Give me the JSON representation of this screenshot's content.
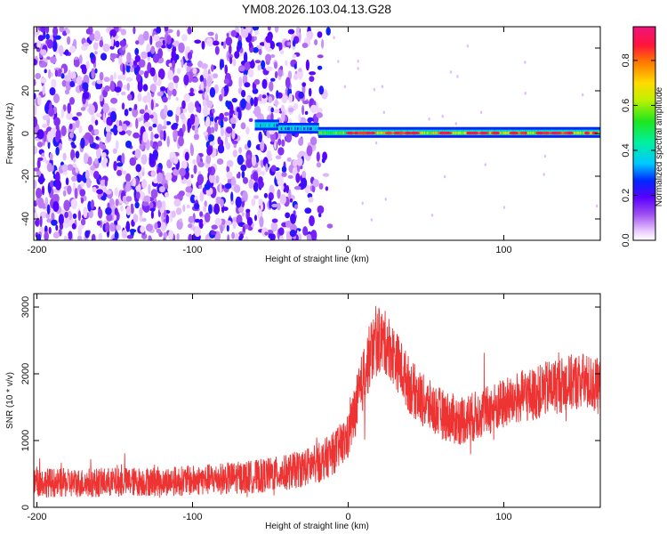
{
  "title": "YM08.2026.103.04.13.G28",
  "chart_data": [
    {
      "type": "heatmap",
      "name": "spectrogram",
      "xlabel": "Height of straight line (km)",
      "ylabel": "Frequency (Hz)",
      "xlim": [
        -202,
        162
      ],
      "ylim": [
        -50,
        50
      ],
      "xticks": [
        -200,
        -100,
        0,
        100
      ],
      "xtick_labels": [
        "-200",
        "-100",
        "0",
        "100"
      ],
      "yticks": [
        -40,
        -20,
        0,
        20,
        40
      ],
      "ytick_labels": [
        "-40",
        "-20",
        "0",
        "20",
        "40"
      ],
      "noise_region_km": [
        -202,
        -20
      ],
      "signal_band_hz": [
        -2,
        3
      ],
      "signal_start_km": -60,
      "colorbar": {
        "label": "Normalized spectral amplitude",
        "range": [
          0.0,
          0.95
        ],
        "ticks": [
          0.0,
          0.2,
          0.4,
          0.6,
          0.8
        ],
        "tick_labels": [
          "0.0",
          "0.2",
          "0.4",
          "0.6",
          "0.8"
        ]
      }
    },
    {
      "type": "line",
      "name": "snr",
      "xlabel": "Height of straight line (km)",
      "ylabel": "SNR (10 * v/v)",
      "xlim": [
        -202,
        162
      ],
      "ylim": [
        0,
        3200
      ],
      "xticks": [
        -200,
        -100,
        0,
        100
      ],
      "xtick_labels": [
        "-200",
        "-100",
        "0",
        "100"
      ],
      "yticks": [
        0,
        1000,
        2000,
        3000
      ],
      "ytick_labels": [
        "0",
        "1000",
        "2000",
        "3000"
      ],
      "color": "#ee3333",
      "series": [
        {
          "name": "SNR",
          "x": [
            -202,
            -180,
            -160,
            -140,
            -120,
            -100,
            -80,
            -60,
            -40,
            -20,
            -10,
            0,
            5,
            10,
            15,
            20,
            25,
            30,
            40,
            50,
            60,
            70,
            80,
            90,
            100,
            110,
            120,
            130,
            140,
            150,
            162
          ],
          "y": [
            380,
            360,
            370,
            380,
            390,
            400,
            430,
            460,
            520,
            650,
            800,
            1050,
            1500,
            1950,
            2350,
            2500,
            2450,
            2250,
            1800,
            1550,
            1400,
            1300,
            1350,
            1450,
            1550,
            1650,
            1700,
            1800,
            1850,
            1900,
            1800
          ],
          "noise_amplitude": [
            220,
            220,
            220,
            220,
            220,
            230,
            240,
            250,
            270,
            300,
            320,
            350,
            420,
            480,
            500,
            500,
            480,
            450,
            420,
            400,
            380,
            380,
            380,
            380,
            390,
            400,
            400,
            420,
            430,
            430,
            420
          ]
        }
      ]
    }
  ]
}
